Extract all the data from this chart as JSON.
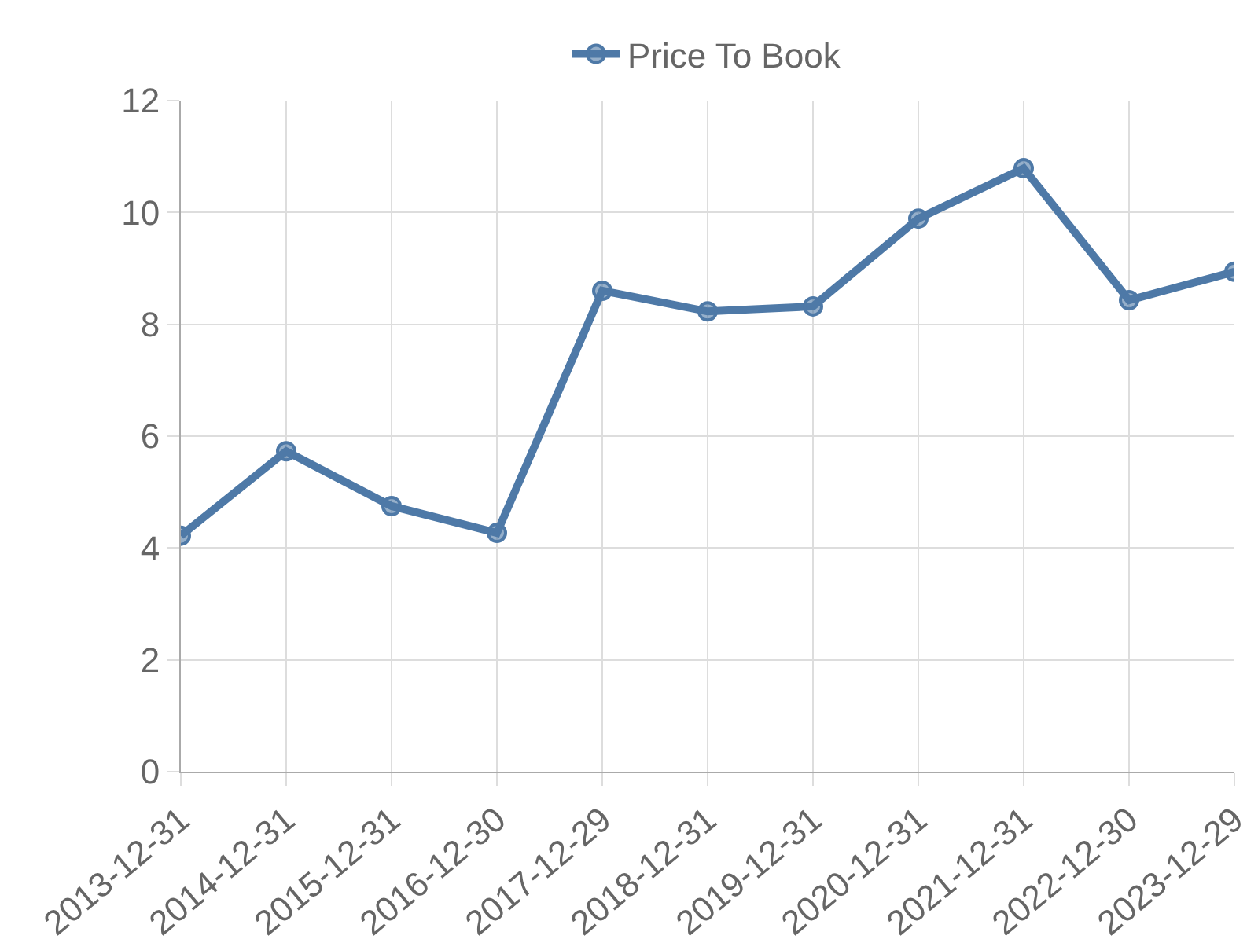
{
  "chart_data": {
    "type": "line",
    "categories": [
      "2013-12-31",
      "2014-12-31",
      "2015-12-31",
      "2016-12-30",
      "2017-12-29",
      "2018-12-31",
      "2019-12-31",
      "2020-12-31",
      "2021-12-31",
      "2022-12-30",
      "2023-12-29"
    ],
    "series": [
      {
        "name": "Price To Book",
        "color": "#4e79a7",
        "values": [
          4.22,
          5.73,
          4.75,
          4.27,
          8.6,
          8.23,
          8.32,
          9.89,
          10.79,
          8.43,
          8.94
        ]
      }
    ],
    "ylim": [
      0,
      12
    ],
    "yticks": [
      0,
      2,
      4,
      6,
      8,
      10,
      12
    ],
    "grid": true,
    "legend": "top",
    "marker": "circle",
    "line_style": "solid"
  }
}
